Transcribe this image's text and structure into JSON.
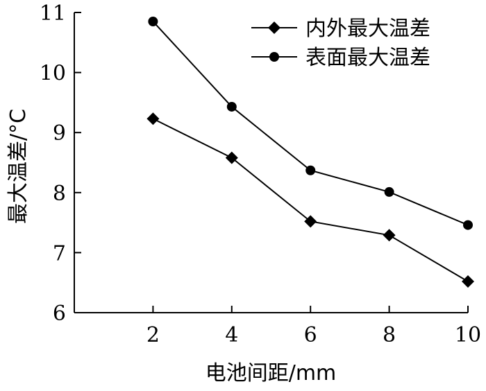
{
  "chart_data": {
    "type": "line",
    "title": "",
    "xlabel": "电池间距/mm",
    "ylabel": "最大温差/°C",
    "x": [
      2,
      4,
      6,
      8,
      10
    ],
    "xlim": [
      0,
      10
    ],
    "ylim": [
      6,
      11
    ],
    "xticks": [
      2,
      4,
      6,
      8,
      10
    ],
    "yticks": [
      6,
      7,
      8,
      9,
      10,
      11
    ],
    "grid": false,
    "legend_position": "top-right",
    "series": [
      {
        "name": "内外最大温差",
        "marker": "diamond",
        "values": [
          9.23,
          8.58,
          7.52,
          7.29,
          6.52
        ]
      },
      {
        "name": "表面最大温差",
        "marker": "circle",
        "values": [
          10.85,
          9.43,
          8.37,
          8.01,
          7.46
        ]
      }
    ]
  }
}
